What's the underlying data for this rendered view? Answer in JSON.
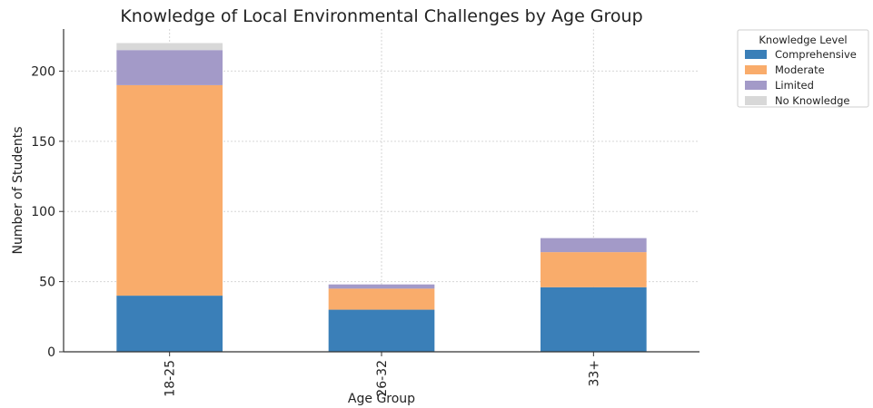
{
  "chart_data": {
    "type": "bar",
    "stacked": true,
    "title": "Knowledge of Local Environmental Challenges by Age Group",
    "xlabel": "Age Group",
    "ylabel": "Number of Students",
    "categories": [
      "18-25",
      "26-32",
      "33+"
    ],
    "ylim": [
      0,
      230
    ],
    "yticks": [
      0,
      50,
      100,
      150,
      200
    ],
    "grid": true,
    "legend": {
      "title": "Knowledge Level",
      "placement": "outside-top-right"
    },
    "series": [
      {
        "name": "Comprehensive",
        "color": "#3a7fb8",
        "values": [
          40,
          30,
          46
        ]
      },
      {
        "name": "Moderate",
        "color": "#f9ac6b",
        "values": [
          150,
          15,
          25
        ]
      },
      {
        "name": "Limited",
        "color": "#a39ac8",
        "values": [
          25,
          3,
          10
        ]
      },
      {
        "name": "No Knowledge",
        "color": "#d8d8d8",
        "values": [
          5,
          0,
          0
        ]
      }
    ]
  }
}
